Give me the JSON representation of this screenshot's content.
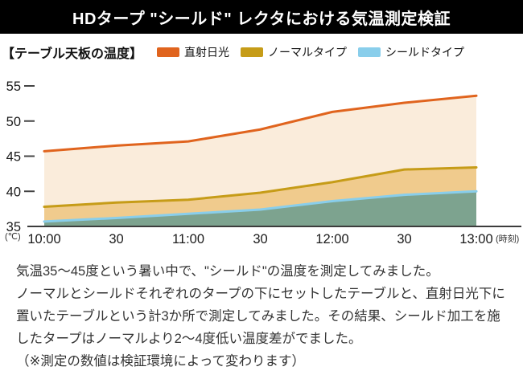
{
  "header": {
    "title": "HDタープ \"シールド\" レクタにおける気温測定検証",
    "bg_color": "#000000",
    "fg_color": "#ffffff"
  },
  "chart_data": {
    "type": "area",
    "title": "【テーブル天板の温度】",
    "categories": [
      "10:00",
      "30",
      "11:00",
      "30",
      "12:00",
      "30",
      "13:00"
    ],
    "x_unit_label": "(時刻)",
    "y_unit_label": "(℃)",
    "ylim": [
      35,
      55
    ],
    "yticks": [
      55,
      50,
      45,
      40,
      35
    ],
    "grid": false,
    "legend_position": "top",
    "axis_color": "#3c3c3c",
    "label_color": "#1a1a1a",
    "series": [
      {
        "name": "直射日光",
        "values": [
          45.7,
          46.5,
          47.1,
          48.8,
          51.3,
          52.6,
          53.6
        ],
        "line_color": "#e0641e",
        "fill_color": "#faecdb"
      },
      {
        "name": "ノーマルタイプ",
        "values": [
          37.8,
          38.4,
          38.8,
          39.8,
          41.3,
          43.1,
          43.4
        ],
        "line_color": "#c69c18",
        "fill_color": "#f0cb8d"
      },
      {
        "name": "シールドタイプ",
        "values": [
          35.7,
          36.2,
          36.8,
          37.4,
          38.6,
          39.5,
          40.0
        ],
        "line_color": "#89ceeb",
        "fill_color": "#7da38f"
      }
    ]
  },
  "description": {
    "lines": [
      "気温35〜45度という暑い中で、\"シールド\"の温度を測定してみました。",
      "ノーマルとシールドそれぞれのタープの下にセットしたテーブルと、直射日光下に",
      "置いたテーブルという計3か所で測定してみました。その結果、シールド加工を施",
      "したタープはノーマルより2〜4度低い温度差がでました。",
      "（※測定の数値は検証環境によって変わります）"
    ]
  }
}
